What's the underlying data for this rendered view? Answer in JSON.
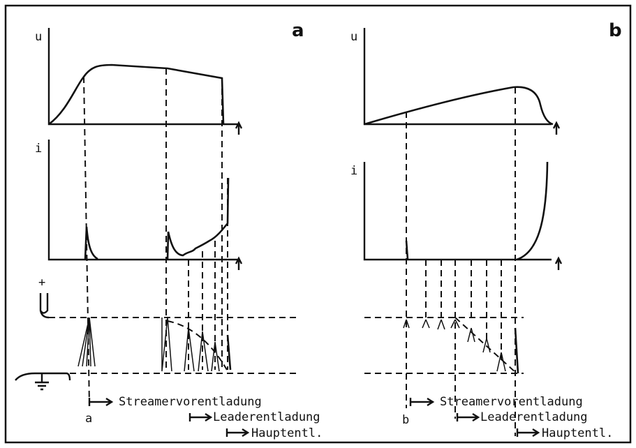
{
  "electrode_sign": "+",
  "panels": [
    {
      "label": "a",
      "u_axis": "u",
      "i_axis": "i",
      "marker": "a",
      "phases": [
        "Streamervorentladung",
        "Leaderentladung",
        "Hauptentl."
      ]
    },
    {
      "label": "b",
      "u_axis": "u",
      "i_axis": "i",
      "marker": "b",
      "phases": [
        "Streamervorentladung",
        "Leaderentladung",
        "Hauptentl."
      ]
    }
  ]
}
